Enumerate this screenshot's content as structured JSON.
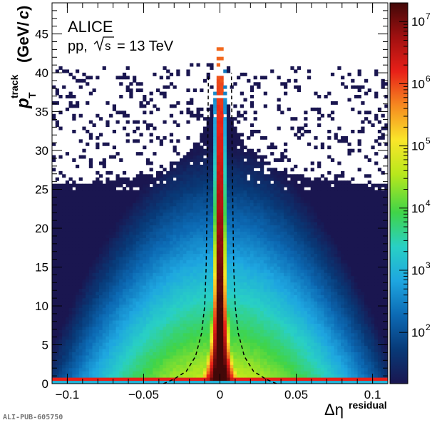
{
  "chart_data": {
    "type": "heatmap",
    "experiment": "ALICE",
    "system_prefix": "pp,",
    "energy_value": "= 13 TeV",
    "xlabel": "Δη",
    "xlabel_sup": "residual",
    "ylabel_p": "p",
    "ylabel_sub": "T",
    "ylabel_sup": "track",
    "ylabel_unit_open": "(GeV/",
    "ylabel_unit_c": "c",
    "ylabel_unit_close": ")",
    "xlim": [
      -0.11,
      0.11
    ],
    "ylim": [
      0,
      49
    ],
    "x_ticks": [
      -0.1,
      -0.05,
      0,
      0.05,
      0.1
    ],
    "x_tick_labels": [
      "−0.1",
      "−0.05",
      "0",
      "0.05",
      "0.1"
    ],
    "y_ticks": [
      0,
      5,
      10,
      15,
      20,
      25,
      30,
      35,
      40,
      45
    ],
    "y_tick_labels": [
      "0",
      "5",
      "10",
      "15",
      "20",
      "25",
      "30",
      "35",
      "40",
      "45"
    ],
    "z_scale": "log",
    "zlim": [
      15,
      20000000
    ],
    "z_ticks": [
      100,
      1000,
      10000,
      100000,
      1000000,
      10000000
    ],
    "z_tick_labels": [
      [
        "10",
        "2"
      ],
      [
        "10",
        "3"
      ],
      [
        "10",
        "4"
      ],
      [
        "10",
        "5"
      ],
      [
        "10",
        "6"
      ],
      [
        "10",
        "7"
      ]
    ],
    "cut_curve": "dashed black, symmetric about Δη = 0",
    "cut_curve_points": [
      [
        0.037,
        0
      ],
      [
        0.03,
        0.6
      ],
      [
        0.022,
        1.6
      ],
      [
        0.016,
        3.5
      ],
      [
        0.012,
        6.5
      ],
      [
        0.01,
        10
      ],
      [
        0.009,
        15
      ],
      [
        0.0085,
        22
      ],
      [
        0.008,
        30
      ],
      [
        0.0075,
        40
      ]
    ],
    "colors": {
      "palette": [
        "#1a1650",
        "#083a78",
        "#0c6ab4",
        "#1ea6e0",
        "#29d0c4",
        "#40d448",
        "#b8e81c",
        "#fae62a",
        "#f68a20",
        "#e82018",
        "#a01010",
        "#420808"
      ]
    }
  },
  "publication_id": "ALI-PUB-605750"
}
